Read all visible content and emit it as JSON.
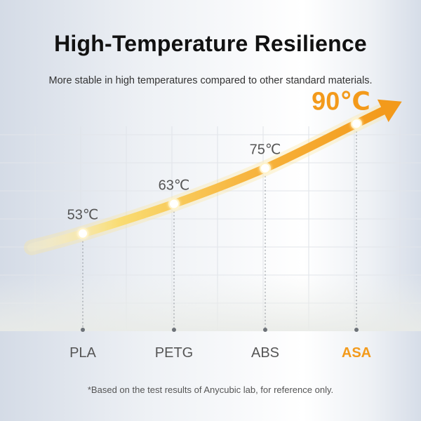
{
  "header": {
    "title": "High-Temperature Resilience",
    "subtitle": "More stable in high temperatures compared to other standard materials."
  },
  "footnote": "*Based on the test results of Anycubic lab, for reference only.",
  "colors": {
    "accent": "#f39a1b",
    "accent_light": "#f8d25a",
    "label": "#555555"
  },
  "chart_data": {
    "type": "line",
    "title": "High-Temperature Resilience",
    "categories": [
      "PLA",
      "PETG",
      "ABS",
      "ASA"
    ],
    "values": [
      53,
      63,
      75,
      90
    ],
    "value_labels": [
      "53℃",
      "63℃",
      "75℃",
      "90℃"
    ],
    "highlight_category": "ASA",
    "unit": "℃",
    "ylim": [
      30,
      100
    ],
    "grid": true,
    "legend": "none"
  }
}
